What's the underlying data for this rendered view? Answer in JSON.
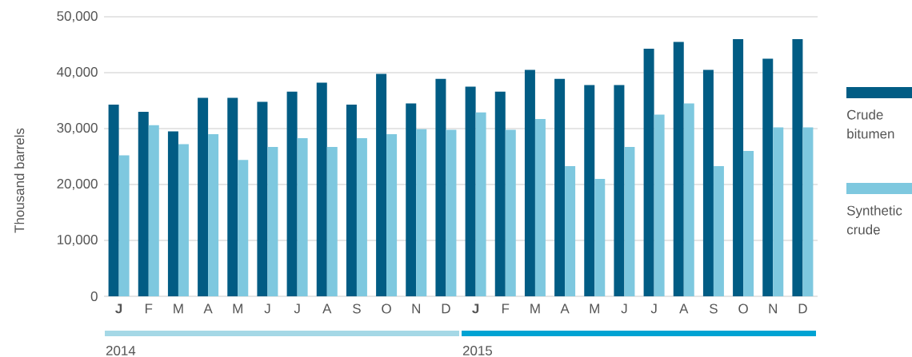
{
  "chart_data": {
    "type": "bar",
    "ylabel": "Thousand barrels",
    "categories": [
      "**J**",
      "F",
      "M",
      "A",
      "M",
      "J",
      "J",
      "A",
      "S",
      "O",
      "N",
      "D",
      "**J**",
      "F",
      "M",
      "A",
      "M",
      "J",
      "J",
      "A",
      "S",
      "O",
      "N",
      "D"
    ],
    "series": [
      {
        "name": "Crude bitumen",
        "color": "#015c84",
        "values": [
          34300,
          33000,
          29500,
          35500,
          35500,
          34800,
          36600,
          38200,
          34300,
          39800,
          34500,
          38900,
          37500,
          36600,
          40500,
          38900,
          37800,
          37800,
          44300,
          45500,
          40500,
          46000,
          42500,
          46000
        ]
      },
      {
        "name": "Synthetic crude",
        "color": "#7ec8df",
        "values": [
          25200,
          30600,
          27200,
          29000,
          24400,
          26700,
          28300,
          26700,
          28300,
          29000,
          29900,
          29800,
          32900,
          29800,
          31700,
          23300,
          21000,
          26700,
          32500,
          34500,
          23300,
          26000,
          30200,
          30200
        ]
      }
    ],
    "ylim": [
      0,
      50000
    ],
    "yticks": [
      {
        "value": 0,
        "label": "0"
      },
      {
        "value": 10000,
        "label": "10,000"
      },
      {
        "value": 20000,
        "label": "20,000"
      },
      {
        "value": 30000,
        "label": "30,000"
      },
      {
        "value": 40000,
        "label": "40,000"
      },
      {
        "value": 50000,
        "label": "50,000"
      }
    ],
    "grid": "y",
    "legend": "right",
    "annotations": [
      "2014",
      "2015"
    ]
  }
}
